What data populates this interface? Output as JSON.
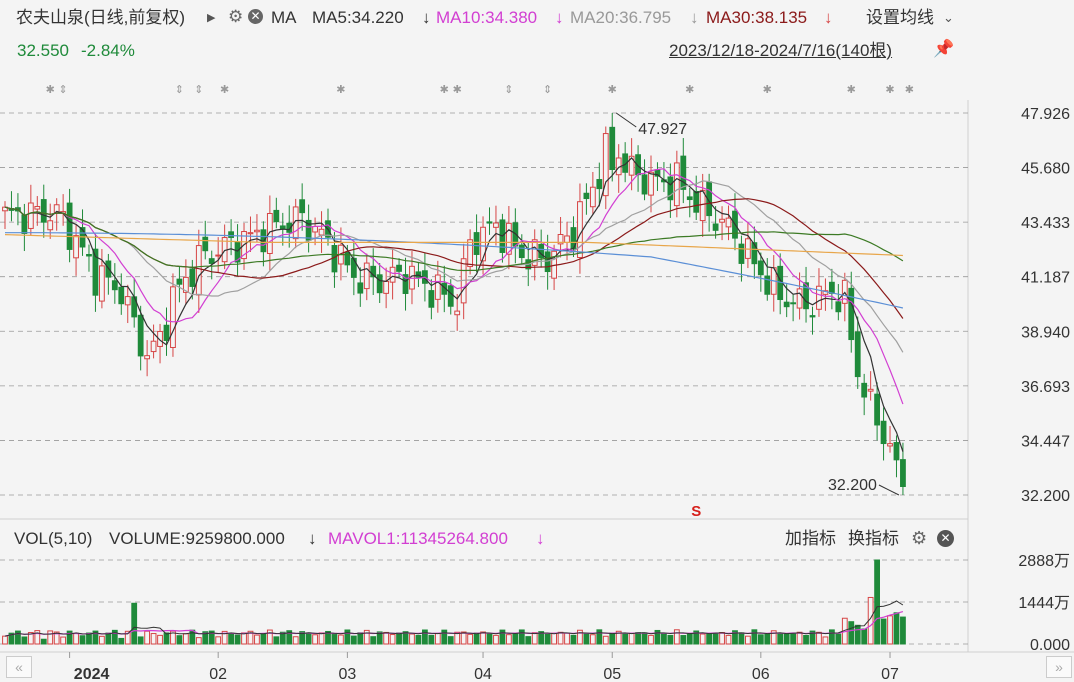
{
  "header": {
    "stock_title": "农夫山泉(日线,前复权)",
    "ma_label": "MA",
    "ma5": {
      "text": "MA5:34.220",
      "arrow": "↓",
      "color": "#333333"
    },
    "ma10": {
      "text": "MA10:34.380",
      "arrow": "↓",
      "color": "#d23fd2"
    },
    "ma20": {
      "text": "MA20:36.795",
      "arrow": "↓",
      "color": "#999999"
    },
    "ma30": {
      "text": "MA30:38.135",
      "arrow": "↓",
      "color": "#8b1a1a"
    },
    "settings": "设置均线",
    "price": "32.550",
    "change": "-2.84%",
    "range": "2023/12/18-2024/7/16(140根)"
  },
  "volume_header": {
    "vol": "VOL(5,10)",
    "volume": "VOLUME:9259800.000",
    "volume_arrow": "↓",
    "mavol": "MAVOL1:11345264.800",
    "mavol_arrow": "↓",
    "add_indicator": "加指标",
    "swap_indicator": "换指标"
  },
  "colors": {
    "up": "#d64545",
    "down": "#1f8a3a",
    "ma5": "#333333",
    "ma10": "#d23fd2",
    "ma20": "#a0a0a0",
    "ma30": "#8b1a1a",
    "ma60": "#3c7a24",
    "ma120": "#5b8fd6",
    "ma250": "#e8a64a",
    "mavol10": "#d23fd2"
  },
  "chart_data": {
    "type": "candlestick",
    "y_ticks": [
      "47.926",
      "45.680",
      "43.433",
      "41.187",
      "38.940",
      "36.693",
      "34.447",
      "32.200"
    ],
    "y_range": [
      32.2,
      47.926
    ],
    "x_ticks": [
      "2024",
      "02",
      "03",
      "04",
      "05",
      "06",
      "07"
    ],
    "annotations": {
      "high": "47.927",
      "low": "32.200",
      "signal": "S"
    },
    "volume_ticks": [
      "2888万",
      "1444万",
      "0.000"
    ],
    "volume_range": [
      0,
      2888
    ],
    "bars": 140,
    "last": {
      "close": 32.55,
      "volume_wan": 925.98,
      "mavol_wan": 1134.53
    }
  }
}
